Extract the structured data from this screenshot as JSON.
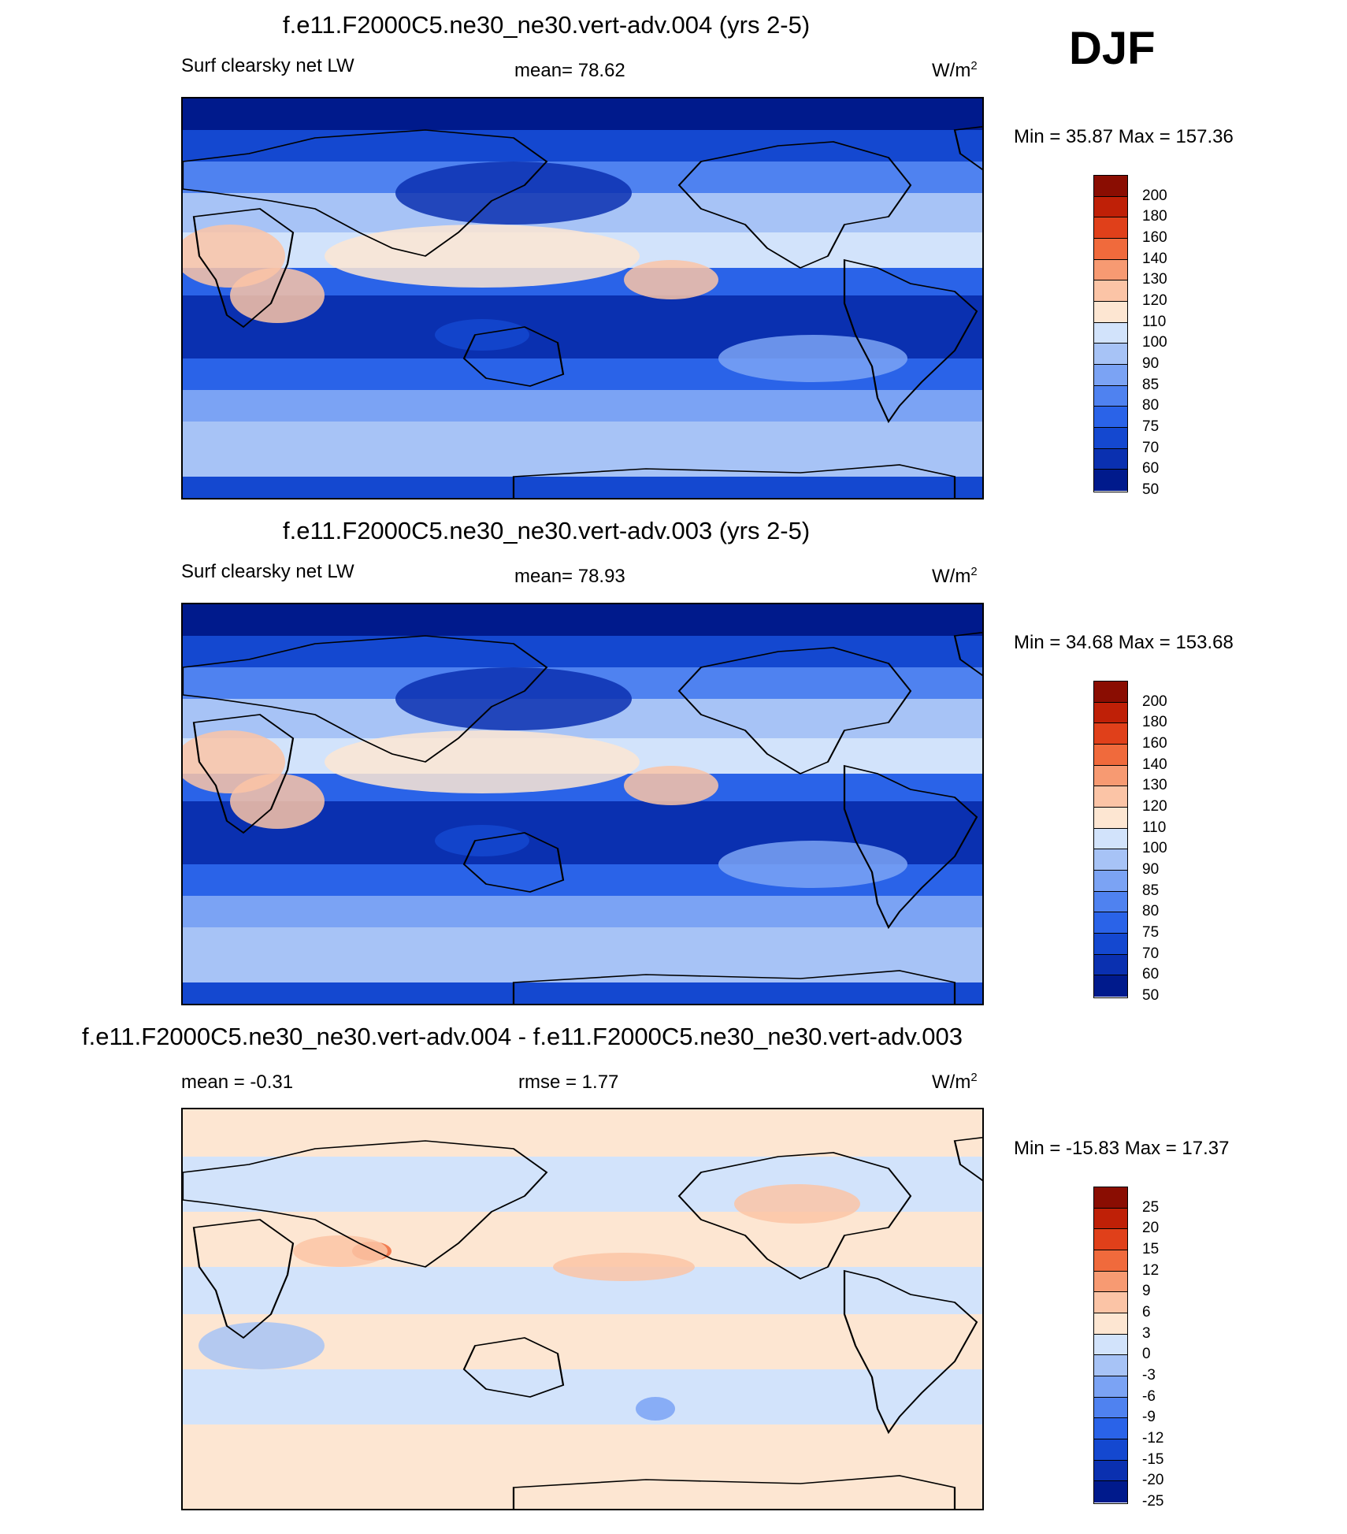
{
  "season": "DJF",
  "units_base": "W/m",
  "units_exp": "2",
  "palettes": {
    "abs": [
      "#001a8c",
      "#0a30b0",
      "#1448d0",
      "#2a63e8",
      "#4f82f0",
      "#7ba3f4",
      "#a7c3f6",
      "#d2e3fb",
      "#fde6d2",
      "#fbc4a6",
      "#f79a72",
      "#f06a3c",
      "#e0401a",
      "#bf2007",
      "#8a0d02"
    ],
    "diff": [
      "#001a8c",
      "#0a30b0",
      "#1448d0",
      "#2a63e8",
      "#4f82f0",
      "#7ba3f4",
      "#a7c3f6",
      "#d2e3fb",
      "#fde6d2",
      "#fbc4a6",
      "#f79a72",
      "#f06a3c",
      "#e0401a",
      "#bf2007",
      "#8a0d02"
    ]
  },
  "panels": [
    {
      "title": "f.e11.F2000C5.ne30_ne30.vert-adv.004 (yrs 2-5)",
      "left_label": "Surf clearsky net LW",
      "center_label": "mean=  78.62",
      "minmax": "Min =  35.87 Max = 157.36",
      "colorbar_labels": [
        "200",
        "180",
        "160",
        "140",
        "130",
        "120",
        "110",
        "100",
        "90",
        "85",
        "80",
        "75",
        "70",
        "60",
        "50"
      ],
      "kind": "abs"
    },
    {
      "title": "f.e11.F2000C5.ne30_ne30.vert-adv.003 (yrs 2-5)",
      "left_label": "Surf clearsky net LW",
      "center_label": "mean=  78.93",
      "minmax": "Min =  34.68 Max = 153.68",
      "colorbar_labels": [
        "200",
        "180",
        "160",
        "140",
        "130",
        "120",
        "110",
        "100",
        "90",
        "85",
        "80",
        "75",
        "70",
        "60",
        "50"
      ],
      "kind": "abs"
    },
    {
      "title": "f.e11.F2000C5.ne30_ne30.vert-adv.004 - f.e11.F2000C5.ne30_ne30.vert-adv.003",
      "left_label": "mean =  -0.31",
      "center_label": "rmse =   1.77",
      "minmax": "Min = -15.83 Max =  17.37",
      "colorbar_labels": [
        "25",
        "20",
        "15",
        "12",
        "9",
        "6",
        "3",
        "0",
        "-3",
        "-6",
        "-9",
        "-12",
        "-15",
        "-20",
        "-25"
      ],
      "kind": "diff"
    }
  ]
}
